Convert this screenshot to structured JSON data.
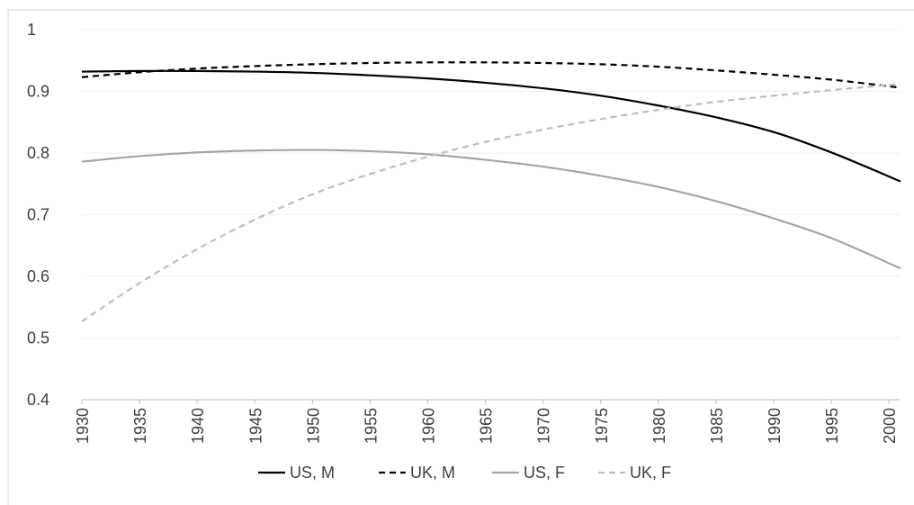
{
  "chart_data": {
    "type": "line",
    "title": "",
    "xlabel": "",
    "ylabel": "",
    "xlim": [
      1930,
      2001
    ],
    "ylim": [
      0.4,
      1
    ],
    "x_ticks": [
      "1930",
      "1935",
      "1940",
      "1945",
      "1950",
      "1955",
      "1960",
      "1965",
      "1970",
      "1975",
      "1980",
      "1985",
      "1990",
      "1995",
      "2000"
    ],
    "y_ticks": [
      "0.4",
      "0.5",
      "0.6",
      "0.7",
      "0.8",
      "0.9",
      "1"
    ],
    "grid": "horizontal",
    "legend_position": "bottom",
    "x": [
      1930,
      1935,
      1940,
      1945,
      1950,
      1955,
      1960,
      1965,
      1970,
      1975,
      1980,
      1985,
      1990,
      1995,
      2001
    ],
    "series": [
      {
        "name": "US, M",
        "color": "#000000",
        "dash": "solid",
        "values": [
          0.932,
          0.933,
          0.933,
          0.932,
          0.93,
          0.926,
          0.921,
          0.914,
          0.905,
          0.893,
          0.877,
          0.858,
          0.834,
          0.801,
          0.754
        ]
      },
      {
        "name": "UK, M",
        "color": "#000000",
        "dash": "dashed",
        "values": [
          0.923,
          0.931,
          0.937,
          0.941,
          0.944,
          0.946,
          0.947,
          0.947,
          0.946,
          0.944,
          0.94,
          0.934,
          0.927,
          0.919,
          0.906
        ]
      },
      {
        "name": "US, F",
        "color": "#a6a6a6",
        "dash": "solid",
        "values": [
          0.786,
          0.795,
          0.801,
          0.804,
          0.805,
          0.803,
          0.798,
          0.789,
          0.778,
          0.763,
          0.745,
          0.722,
          0.694,
          0.662,
          0.613
        ]
      },
      {
        "name": "UK, F",
        "color": "#bfbfbf",
        "dash": "dashed",
        "values": [
          0.527,
          0.589,
          0.644,
          0.692,
          0.733,
          0.766,
          0.794,
          0.818,
          0.838,
          0.855,
          0.87,
          0.883,
          0.893,
          0.902,
          0.912
        ]
      }
    ]
  }
}
